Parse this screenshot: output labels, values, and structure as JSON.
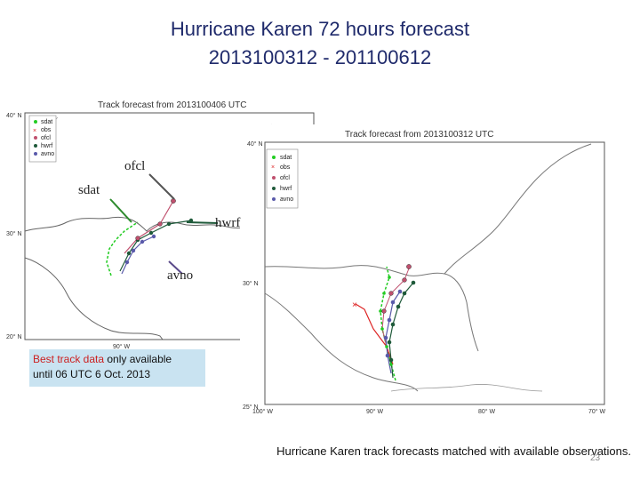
{
  "slide": {
    "title_line1": "Hurricane Karen 72 hours forecast",
    "title_line2": "2013100312 - 201100612",
    "page_number": "23"
  },
  "map_left": {
    "title": "Track forecast from 2013100406 UTC",
    "lat_labels": [
      "40° N",
      "30° N",
      "20° N"
    ],
    "lon_labels": [
      "90° W"
    ],
    "legend": [
      "sdat",
      "obs",
      "ofcl",
      "hwrf",
      "avno"
    ]
  },
  "map_right": {
    "title": "Track forecast from 2013100312 UTC",
    "lat_labels": [
      "40° N",
      "30° N",
      "25° N"
    ],
    "lon_labels": [
      "100° W",
      "90° W",
      "80° W",
      "70° W"
    ],
    "legend": [
      "sdat",
      "obs",
      "ofcl",
      "hwrf",
      "avno"
    ]
  },
  "annotations": {
    "ofcl": "ofcl",
    "sdat": "sdat",
    "hwrf": "hwrf",
    "avno": "avno"
  },
  "note": {
    "highlight": "Best track data",
    "text_rest": " only available",
    "line2": "until 06 UTC 6 Oct. 2013"
  },
  "caption": "Hurricane Karen track forecasts matched with available observations.",
  "colors": {
    "sdat": "#22cc22",
    "obs": "#dd2222",
    "ofcl": "#c0506e",
    "hwrf": "#1f5a3a",
    "avno": "#5a5aaa",
    "title": "#1f2a6b",
    "note_bg": "#c9e3f1"
  }
}
